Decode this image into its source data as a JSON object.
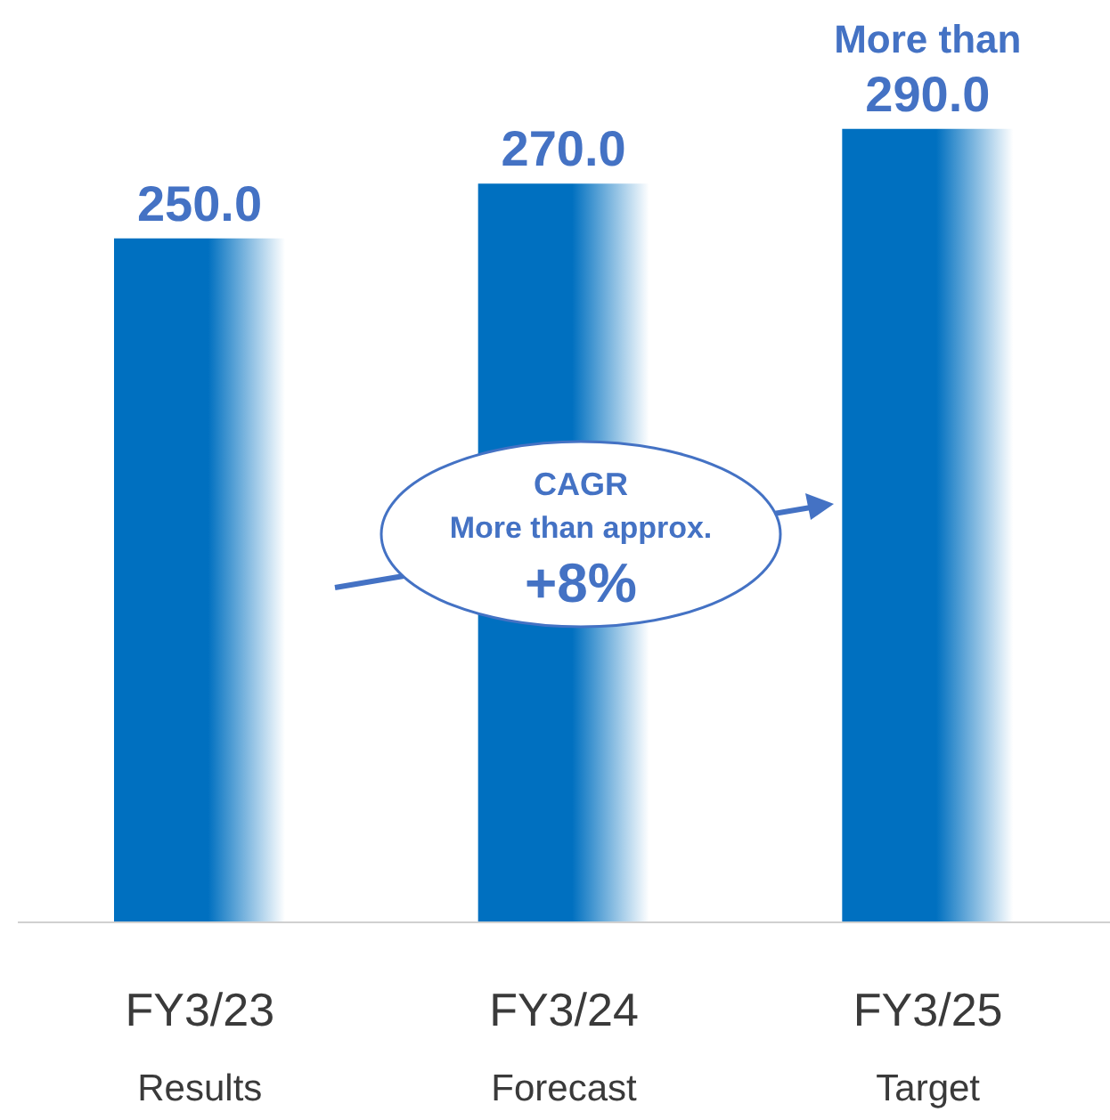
{
  "chart_data": {
    "type": "bar",
    "categories": [
      "FY3/23\nResults",
      "FY3/24\nForecast",
      "FY3/25\nTarget"
    ],
    "values": [
      250,
      270,
      290
    ],
    "color": "#0070c0",
    "value_labels": [
      "250.0",
      "270.0",
      "More than\n290.0"
    ],
    "annotations": [
      "CAGR\nMore than approx.\n+8%"
    ],
    "legend": false,
    "grid": false
  }
}
